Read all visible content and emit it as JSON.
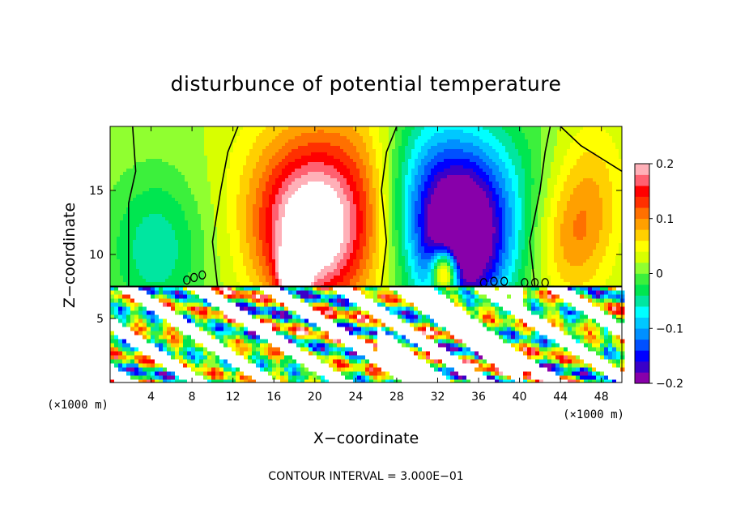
{
  "chart_data": {
    "type": "heatmap",
    "title": "disturbunce of potential temperature",
    "xlabel": "X−coordinate",
    "ylabel": "Z−coordinate",
    "x_unit_label": "(×1000 m)",
    "x_unit_label_right": "(×1000 m)",
    "xlim": [
      0,
      50
    ],
    "ylim": [
      0,
      20
    ],
    "x_ticks": [
      4,
      8,
      12,
      16,
      20,
      24,
      28,
      32,
      36,
      40,
      44,
      48
    ],
    "x_tick_labels": [
      "4",
      "8",
      "12",
      "16",
      "20",
      "24",
      "28",
      "32",
      "36",
      "40",
      "44",
      "48"
    ],
    "y_ticks": [
      5,
      10,
      15
    ],
    "y_tick_labels": [
      "5",
      "10",
      "15"
    ],
    "interface_height": 7.5,
    "colorbar": {
      "range": [
        -0.2,
        0.2
      ],
      "tick_values": [
        0.2,
        0.1,
        0,
        -0.1,
        -0.2
      ],
      "tick_labels": [
        "0.2",
        "0.1",
        "0",
        "−0.1",
        "−0.2"
      ],
      "colors": [
        "#8800aa",
        "#3a00c8",
        "#0000ff",
        "#0050ff",
        "#0090ff",
        "#00c8ff",
        "#00ffff",
        "#00e6a0",
        "#00e650",
        "#3cf03c",
        "#90ff30",
        "#d8ff00",
        "#ffff00",
        "#ffd000",
        "#ffa000",
        "#ff7000",
        "#ff3000",
        "#ff0000",
        "#ff6070",
        "#ffb0b8"
      ]
    },
    "contour_interval_label": "CONTOUR INTERVAL = 3.000E−01",
    "upper_layer_features": [
      {
        "x": 4.5,
        "z": 10.5,
        "value": -0.07,
        "sx": 3.2,
        "sz": 4.0
      },
      {
        "x": 19.5,
        "z": 11.0,
        "value": 0.16,
        "sx": 3.5,
        "sz": 4.0
      },
      {
        "x": 20.0,
        "z": 15.0,
        "value": 0.1,
        "sx": 5.0,
        "sz": 5.0
      },
      {
        "x": 25.5,
        "z": 14.0,
        "value": 0.04,
        "sx": 3.0,
        "sz": 6.0
      },
      {
        "x": 34.5,
        "z": 10.5,
        "value": -0.19,
        "sx": 3.0,
        "sz": 4.0
      },
      {
        "x": 34.5,
        "z": 14.5,
        "value": -0.12,
        "sx": 4.8,
        "sz": 5.0
      },
      {
        "x": 30.0,
        "z": 15.0,
        "value": -0.05,
        "sx": 3.0,
        "sz": 5.0
      },
      {
        "x": 45.0,
        "z": 11.0,
        "value": 0.07,
        "sx": 2.6,
        "sz": 3.5
      },
      {
        "x": 47.0,
        "z": 15.5,
        "value": 0.05,
        "sx": 2.5,
        "sz": 4.0
      }
    ],
    "upper_layer_hotspots": [
      {
        "x": 18.0,
        "z": 8.6,
        "value": 0.25,
        "sx": 0.9,
        "sz": 1.2
      },
      {
        "x": 32.7,
        "z": 8.6,
        "value": 0.25,
        "sx": 0.9,
        "sz": 1.3
      }
    ]
  }
}
